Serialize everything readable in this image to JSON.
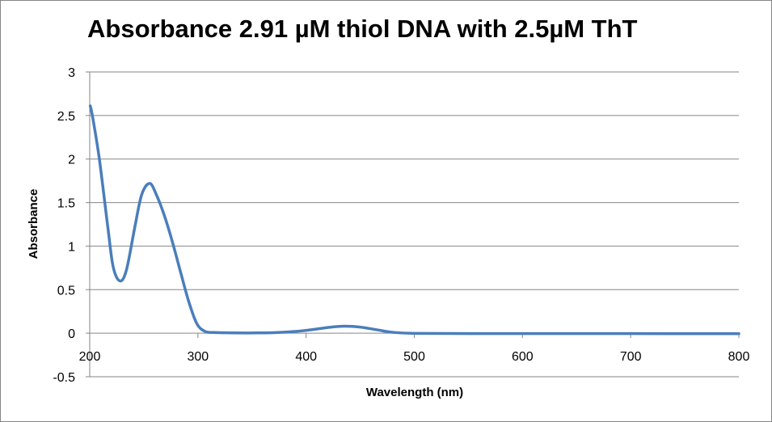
{
  "chart_data": {
    "type": "line",
    "title": "Absorbance  2.91 µM thiol DNA with 2.5µM ThT",
    "xlabel": "Wavelength (nm)",
    "ylabel": "Absorbance",
    "xlim": [
      200,
      800
    ],
    "ylim": [
      -0.5,
      3
    ],
    "xticks": [
      200,
      300,
      400,
      500,
      600,
      700,
      800
    ],
    "yticks": [
      -0.5,
      0,
      0.5,
      1,
      1.5,
      2,
      2.5,
      3
    ],
    "ytick_labels": [
      "-0.5",
      "0",
      "0.5",
      "1",
      "1.5",
      "2",
      "2.5",
      "3"
    ],
    "grid": "horizontal",
    "legend": "none",
    "color": "#4a7ebb",
    "series": [
      {
        "x": [
          200.5,
          203,
          209,
          216.7,
          221.7,
          228,
          234,
          241.7,
          248,
          255.4,
          261.6,
          269,
          276.6,
          284,
          291.6,
          299,
          306.6,
          315,
          330,
          350,
          370,
          390,
          405,
          420,
          435,
          450,
          465,
          480,
          500,
          550,
          600,
          700,
          800
        ],
        "y": [
          2.61,
          2.46,
          1.99,
          1.22,
          0.76,
          0.6,
          0.73,
          1.22,
          1.59,
          1.72,
          1.59,
          1.35,
          1.04,
          0.7,
          0.36,
          0.11,
          0.02,
          0.008,
          0.004,
          0.003,
          0.006,
          0.02,
          0.04,
          0.065,
          0.08,
          0.07,
          0.04,
          0.01,
          -0.002,
          -0.004,
          -0.004,
          -0.005,
          -0.006
        ]
      }
    ]
  }
}
